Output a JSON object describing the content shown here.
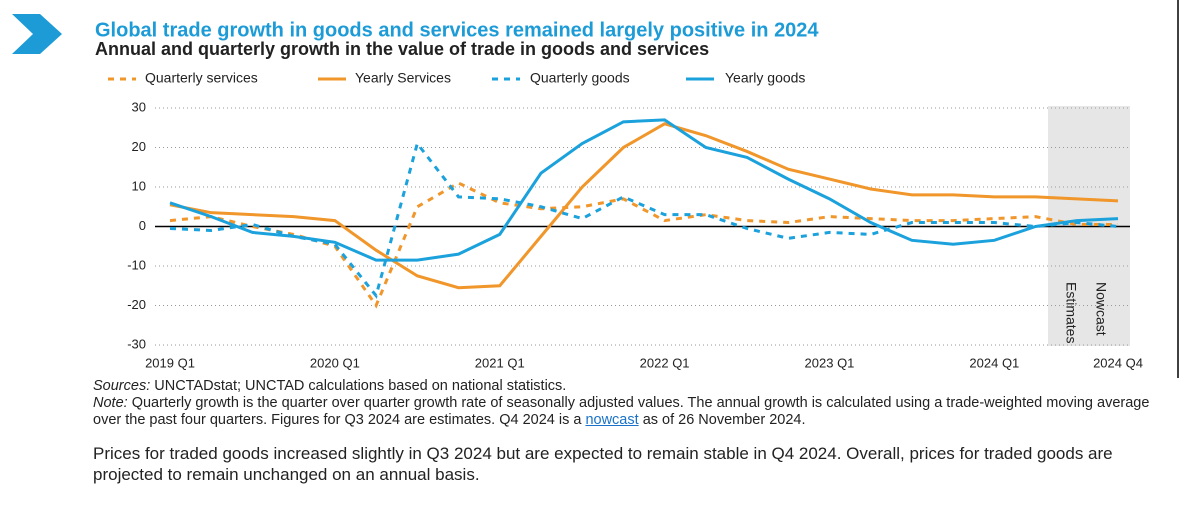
{
  "chart_data": {
    "type": "line",
    "title": "Global trade growth in goods and services remained largely positive in 2024",
    "subtitle": "Annual and quarterly growth in the value of trade in goods and services",
    "categories": [
      "2019 Q1",
      null,
      null,
      null,
      "2020 Q1",
      null,
      null,
      null,
      "2021 Q1",
      null,
      null,
      null,
      "2022 Q1",
      null,
      null,
      null,
      "2023 Q1",
      null,
      null,
      null,
      "2024 Q1",
      null,
      null,
      "2024 Q4"
    ],
    "series": [
      {
        "name": "Quarterly services",
        "color": "#f0962a",
        "dashed": true,
        "values": [
          1.5,
          2.5,
          0,
          -2,
          -5,
          -20,
          5,
          11,
          6,
          4.5,
          5,
          7,
          1.5,
          3,
          1.5,
          1,
          2.5,
          2,
          1.5,
          1.5,
          2,
          2.5,
          0.5,
          0.5
        ]
      },
      {
        "name": "Yearly Services",
        "color": "#f0962a",
        "dashed": false,
        "values": [
          5.5,
          3.5,
          3,
          2.5,
          1.5,
          -6,
          -12.5,
          -15.5,
          -15,
          -2.5,
          10,
          20,
          26,
          23,
          19,
          14.5,
          12,
          9.5,
          8,
          8,
          7.5,
          7.5,
          7,
          6.5
        ]
      },
      {
        "name": "Quarterly goods",
        "color": "#1ba1dc",
        "dashed": true,
        "values": [
          -0.5,
          -1,
          0.5,
          -2.5,
          -4.5,
          -17.5,
          21,
          7.5,
          7,
          5,
          2,
          7.5,
          3,
          3,
          -0.5,
          -3,
          -1.5,
          -2,
          1,
          1,
          1,
          0,
          1,
          0
        ]
      },
      {
        "name": "Yearly goods",
        "color": "#1ba1dc",
        "dashed": false,
        "values": [
          6,
          2.5,
          -1.5,
          -2.5,
          -4,
          -8.5,
          -8.5,
          -7,
          -2,
          13.5,
          21,
          26.5,
          27,
          20,
          17.5,
          12,
          7,
          1,
          -3.5,
          -4.5,
          -3.5,
          0,
          1.5,
          2
        ]
      }
    ],
    "ylim": [
      -30,
      30
    ],
    "yticks": [
      -30,
      -20,
      -10,
      0,
      10,
      20,
      30
    ],
    "grid": true,
    "annotations": [
      "Estimates",
      "Nowcast"
    ],
    "footer": {
      "sources_label": "Sources:",
      "sources": "UNCTADstat; UNCTAD calculations based on national statistics.",
      "note_label": "Note:",
      "note_before": "Quarterly growth is the quarter over quarter growth rate of seasonally adjusted values. The annual growth is calculated using a trade-weighted moving average over the past four quarters. Figures for Q3 2024 are estimates. Q4 2024 is a",
      "note_link": "nowcast",
      "note_after": "as of 26 November 2024.",
      "paragraph": "Prices for traded goods increased slightly in Q3 2024 but are expected to remain stable in Q4 2024. Overall, prices for traded goods are projected to remain unchanged on an annual basis."
    }
  }
}
